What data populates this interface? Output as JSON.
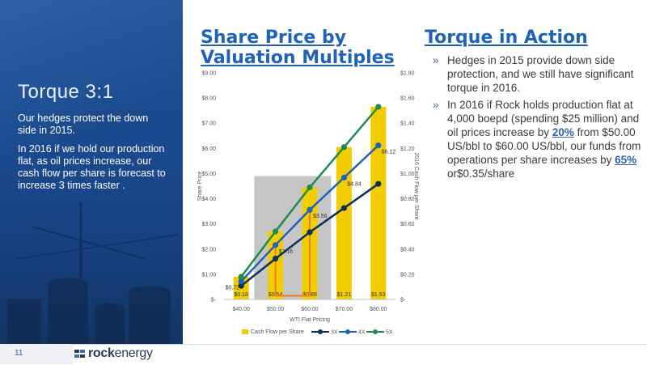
{
  "left_panel": {
    "title": "Torque 3:1",
    "paragraph1": "Our hedges protect the down side in 2015.",
    "paragraph2": "In 2016  if we hold our production flat, as oil prices increase, our cash flow per share is forecast to increase 3 times faster ."
  },
  "footer": {
    "page_number": "11",
    "logo_bold": "rock",
    "logo_light": "energy"
  },
  "chart_title": {
    "line1": "Share Price by",
    "line2": "Valuation Multiples"
  },
  "torque_section": {
    "title": "Torque in Action",
    "bullet1": "Hedges in 2015 provide down side protection,  and we still have significant torque in 2016.",
    "bullet2_part1": "In 2016 if Rock holds production flat at 4,000 boepd (spending $25 million) and oil prices increase by ",
    "bullet2_hl1": "20%",
    "bullet2_part2": " from $50.00 US/bbl to $60.00 US/bbl, our funds from operations per share increases by ",
    "bullet2_hl2": "65%",
    "bullet2_part3": " or$0.35/share"
  },
  "colors": {
    "bar": "#f2cd00",
    "line_3x": "#0b2f5e",
    "line_4x": "#1f63b6",
    "line_5x": "#1f8a4c",
    "highlight_box": "#c6c6c6",
    "orange": "#f07e26"
  },
  "chart_data": {
    "type": "bar",
    "categories": [
      "$40.00",
      "$50.00",
      "$60.00",
      "$70.00",
      "$80.00"
    ],
    "bar_series": {
      "name": "Cash Flow per Share",
      "axis": "right",
      "values": [
        0.18,
        0.54,
        0.89,
        1.21,
        1.53
      ],
      "labels": [
        "$0.18",
        "$0.54",
        "$0.89",
        "$1.21",
        "$1.53"
      ]
    },
    "line_series": [
      {
        "name": "3X",
        "axis": "left",
        "values": [
          0.54,
          1.62,
          2.67,
          3.63,
          4.59
        ]
      },
      {
        "name": "4X",
        "axis": "left",
        "values": [
          0.72,
          2.16,
          3.56,
          4.84,
          6.12
        ]
      },
      {
        "name": "5X",
        "axis": "left",
        "values": [
          0.9,
          2.7,
          4.45,
          6.05,
          7.65
        ]
      }
    ],
    "line_labels": [
      {
        "series": "4X",
        "index": 0,
        "text": "$0.72"
      },
      {
        "series": "4X",
        "index": 1,
        "text": "$2.16"
      },
      {
        "series": "4X",
        "index": 2,
        "text": "$3.56"
      },
      {
        "series": "4X",
        "index": 3,
        "text": "$4.84"
      },
      {
        "series": "4X",
        "index": 4,
        "text": "$6.12"
      }
    ],
    "xlabel": "WTI Flat Pricing",
    "ylabel": "Share Price",
    "y2label": "2016 Cash Flow per Share",
    "ylim": [
      0,
      9
    ],
    "y2lim": [
      0,
      1.8
    ],
    "yticks": [
      "$-",
      "$1.00",
      "$2.00",
      "$3.00",
      "$4.00",
      "$5.00",
      "$6.00",
      "$7.00",
      "$8.00",
      "$9.00"
    ],
    "y2ticks": [
      "$-",
      "$0.20",
      "$0.40",
      "$0.60",
      "$0.80",
      "$1.00",
      "$1.20",
      "$1.40",
      "$1.60",
      "$1.80"
    ],
    "highlight_region": {
      "from_category": 1,
      "to_category": 2,
      "ymax": 4.9
    },
    "bracket": {
      "category_from": 1,
      "category_to": 2,
      "y_low": 0.15,
      "y_from": 2.16,
      "y_to": 3.56
    },
    "legend_placement": "bottom",
    "grid": false
  }
}
